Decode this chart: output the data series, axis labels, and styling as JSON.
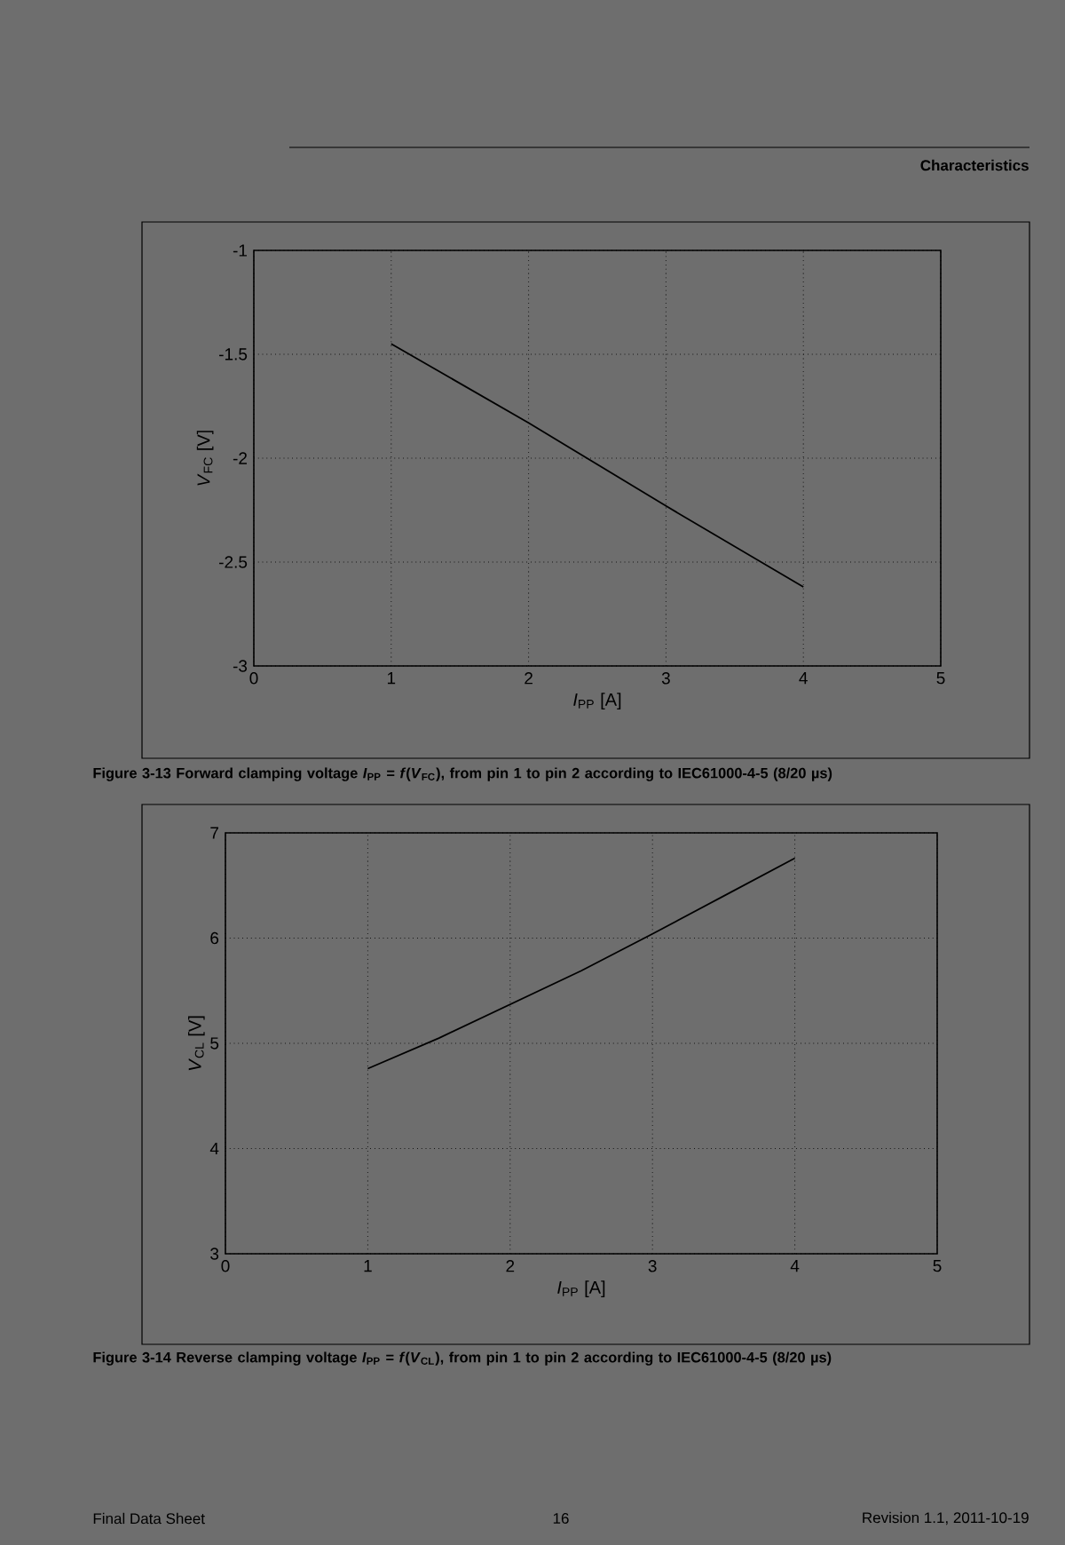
{
  "chart_data": [
    {
      "type": "line",
      "title": "Figure 3-13 Forward clamping voltage *I*$_{PP}$ = *f*(*V*$_{FC}$), from pin 1 to pin 2 according to IEC61000-4-5 (8/20 µs)",
      "xlabel": "*I*$_{PP}$ [A]",
      "ylabel": "*V*$_{FC}$ [V]",
      "annotations": [
        "Characteristics"
      ],
      "x": [
        1,
        2,
        3,
        4
      ],
      "series": [
        {
          "color": "#000000",
          "values": [
            -1.45,
            -1.83,
            -2.23,
            -2.62
          ]
        }
      ],
      "xlim": [
        0,
        5
      ],
      "ylim": [
        -3,
        -1
      ],
      "xticks": [
        0,
        1,
        2,
        3,
        4,
        5
      ],
      "yticks": [
        -3,
        -2.5,
        -2,
        -1.5,
        -1
      ],
      "grid": true
    },
    {
      "type": "line",
      "title": "Figure 3-14 Reverse clamping voltage *I*$_{PP}$ = *f*(*V*$_{CL}$), from pin 1 to pin 2 according to IEC61000-4-5 (8/20 µs)",
      "xlabel": "*I*$_{PP}$ [A]",
      "ylabel": "*V*$_{CL}$ [V]",
      "annotations": [
        "Final Data Sheet",
        "16",
        "Revision 1.1, 2011-10-19"
      ],
      "x": [
        1,
        1.5,
        2,
        2.5,
        3,
        3.5,
        4
      ],
      "series": [
        {
          "color": "#000000",
          "values": [
            4.76,
            5.05,
            5.37,
            5.69,
            6.04,
            6.4,
            6.76
          ]
        }
      ],
      "xlim": [
        0,
        5
      ],
      "ylim": [
        3,
        7
      ],
      "xticks": [
        0,
        1,
        2,
        3,
        4,
        5
      ],
      "yticks": [
        3,
        4,
        5,
        6,
        7
      ],
      "grid": true
    }
  ]
}
